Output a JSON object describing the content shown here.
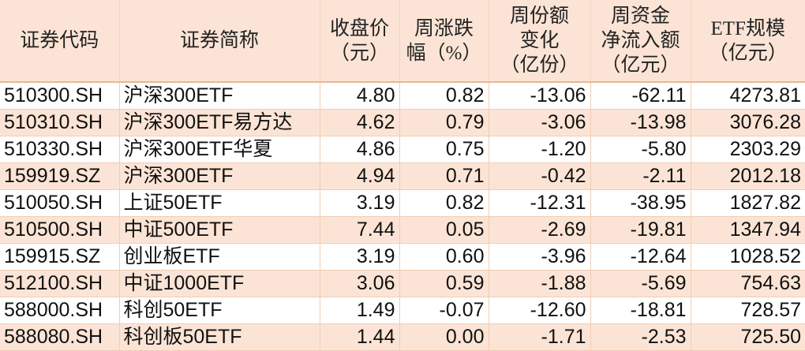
{
  "headers": [
    "证券代码",
    "证券简称",
    "收盘价\n（元）",
    "周涨跌\n幅（%）",
    "周份额\n变化\n（亿份）",
    "周资金\n净流入额\n（亿元）",
    "ETF规模\n（亿元）"
  ],
  "rows": [
    [
      "510300.SH",
      "沪深300ETF",
      "4.80",
      "0.82",
      "-13.06",
      "-62.11",
      "4273.81"
    ],
    [
      "510310.SH",
      "沪深300ETF易方达",
      "4.62",
      "0.79",
      "-3.06",
      "-13.98",
      "3076.28"
    ],
    [
      "510330.SH",
      "沪深300ETF华夏",
      "4.86",
      "0.75",
      "-1.20",
      "-5.80",
      "2303.29"
    ],
    [
      "159919.SZ",
      "沪深300ETF",
      "4.94",
      "0.71",
      "-0.42",
      "-2.11",
      "2012.18"
    ],
    [
      "510050.SH",
      "上证50ETF",
      "3.19",
      "0.82",
      "-12.31",
      "-38.95",
      "1827.82"
    ],
    [
      "510500.SH",
      "中证500ETF",
      "7.44",
      "0.05",
      "-2.69",
      "-19.81",
      "1347.94"
    ],
    [
      "159915.SZ",
      "创业板ETF",
      "3.19",
      "0.60",
      "-3.96",
      "-12.64",
      "1028.52"
    ],
    [
      "512100.SH",
      "中证1000ETF",
      "3.06",
      "0.59",
      "-1.88",
      "-5.69",
      "754.63"
    ],
    [
      "588000.SH",
      "科创50ETF",
      "1.49",
      "-0.07",
      "-12.60",
      "-18.81",
      "728.57"
    ],
    [
      "588080.SH",
      "科创板50ETF",
      "1.44",
      "0.00",
      "-1.71",
      "-2.53",
      "725.50"
    ]
  ],
  "colors": {
    "header_bg": "#fbe4d5",
    "alt_row_bg": "#fbe4d5",
    "border": "#f0cdb5"
  }
}
